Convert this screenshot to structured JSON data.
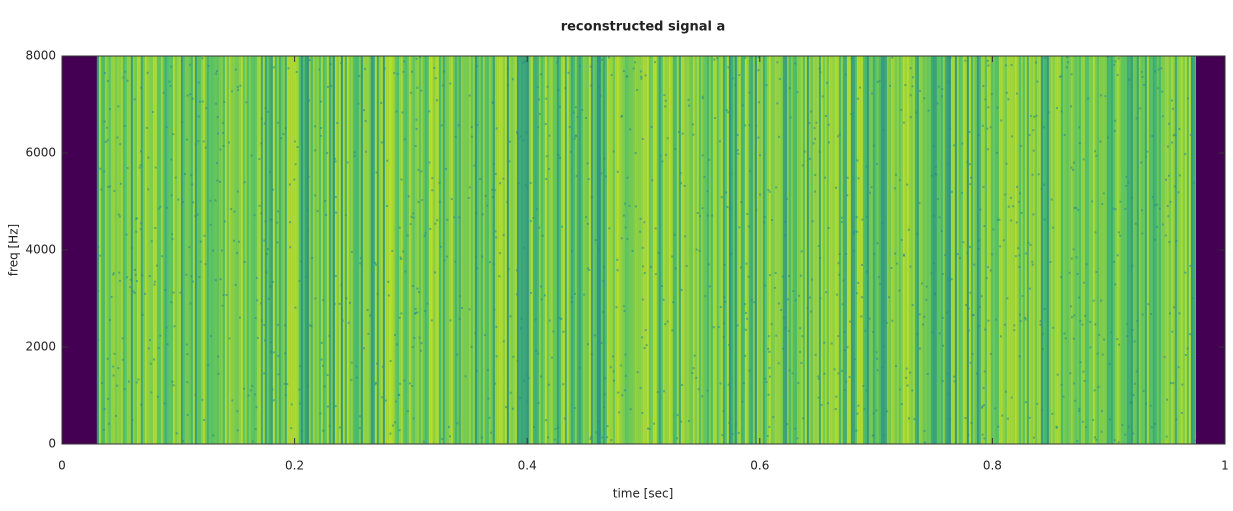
{
  "chart_data": {
    "type": "spectrogram",
    "title": "reconstructed signal a",
    "x_label": "time [sec]",
    "y_label": "freq [Hz]",
    "xlim": [
      0,
      1
    ],
    "xticks": [
      0,
      0.2,
      0.4,
      0.6,
      0.8,
      1
    ],
    "ylim": [
      0,
      8000
    ],
    "yticks": [
      0,
      2000,
      4000,
      6000,
      8000
    ],
    "signal_xlim": [
      0.03,
      0.975
    ],
    "colormap": [
      "#440154",
      "#2a8c8a",
      "#4fbf6a",
      "#d2e21b"
    ]
  }
}
